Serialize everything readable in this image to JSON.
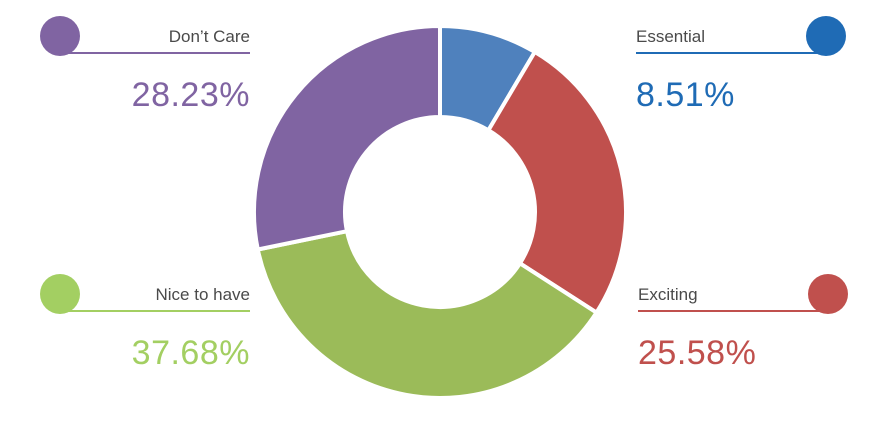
{
  "chart_data": {
    "type": "pie",
    "variant": "donut",
    "categories": [
      "Essential",
      "Exciting",
      "Nice to have",
      "Don't Care"
    ],
    "values": [
      8.51,
      25.58,
      37.68,
      28.23
    ],
    "value_labels": [
      "8.51%",
      "25.58%",
      "37.68%",
      "28.23%"
    ],
    "colors": [
      "#4f81bd",
      "#c0504d",
      "#9bbb59",
      "#8064a2"
    ],
    "legend": "corners"
  },
  "legend": {
    "dont_care": {
      "label": "Don’t Care",
      "pct": "28.23%",
      "color": "#8064a2"
    },
    "essential": {
      "label": "Essential",
      "pct": "8.51%",
      "color": "#1f6bb5"
    },
    "nice_to_have": {
      "label": "Nice to have",
      "pct": "37.68%",
      "color": "#a3cf62"
    },
    "exciting": {
      "label": "Exciting",
      "pct": "25.58%",
      "color": "#c0504d"
    }
  }
}
